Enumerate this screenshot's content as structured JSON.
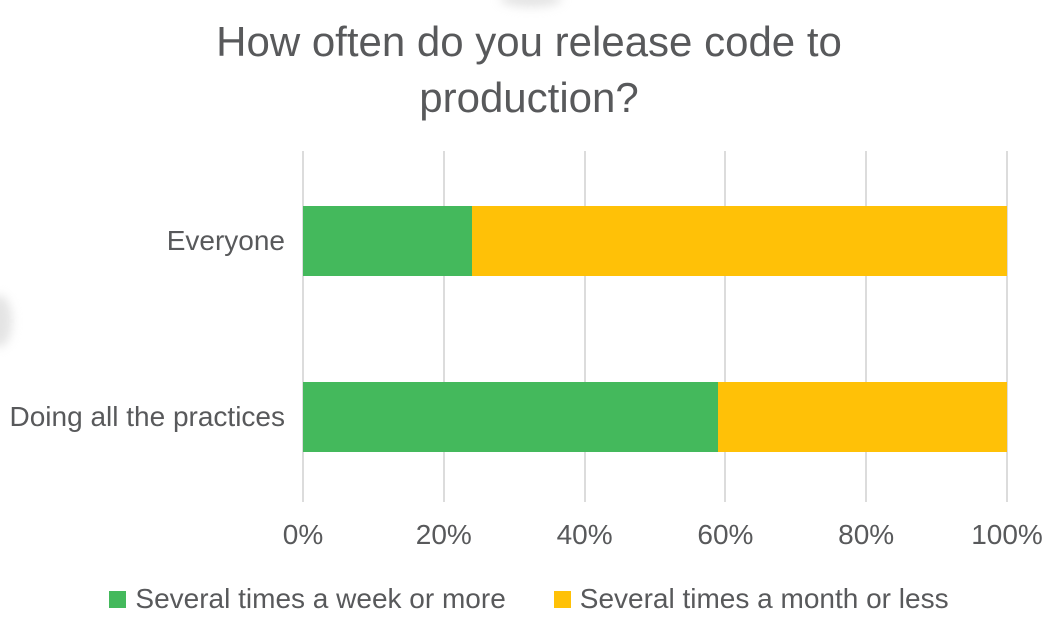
{
  "chart_data": {
    "type": "bar",
    "variant": "horizontal-stacked",
    "title": "How often do you release code to production?",
    "categories": [
      "Everyone",
      "Doing all the practices"
    ],
    "series": [
      {
        "name": "Several times a week or more",
        "color": "#44b95c",
        "values": [
          24,
          59
        ]
      },
      {
        "name": "Several times a month or less",
        "color": "#ffc107",
        "values": [
          76,
          41
        ]
      }
    ],
    "x_ticks": [
      {
        "value": 0,
        "label": "0%"
      },
      {
        "value": 20,
        "label": "20%"
      },
      {
        "value": 40,
        "label": "40%"
      },
      {
        "value": 60,
        "label": "60%"
      },
      {
        "value": 80,
        "label": "80%"
      },
      {
        "value": 100,
        "label": "100%"
      }
    ],
    "xlim": [
      0,
      100
    ],
    "grid": true,
    "grid_color": "#dcdcdc",
    "text_color": "#58595b",
    "legend_position": "bottom"
  }
}
